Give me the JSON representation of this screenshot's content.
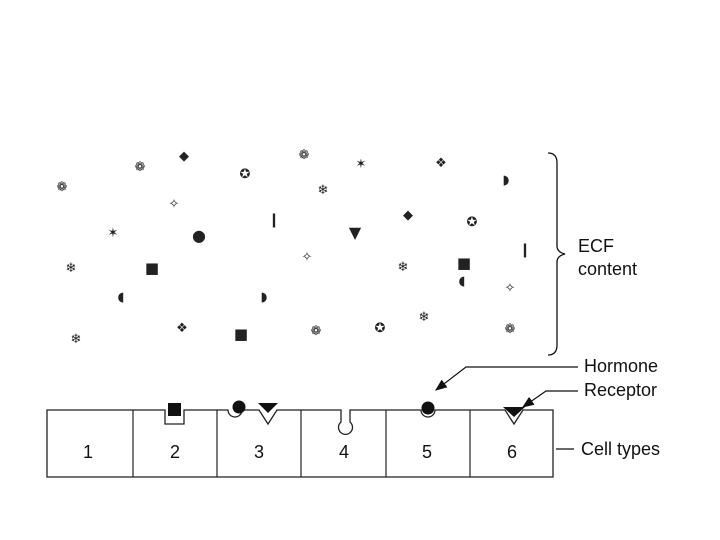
{
  "labels": {
    "ecf_line1": "ECF",
    "ecf_line2": "content",
    "hormone": "Hormone",
    "receptor": "Receptor",
    "cell_types": "Cell types"
  },
  "cells": [
    "1",
    "2",
    "3",
    "4",
    "5",
    "6"
  ],
  "ecf_molecules": [
    {
      "name": "gear-molecule",
      "glyph": "❁"
    },
    {
      "name": "gear-molecule",
      "glyph": "❁"
    },
    {
      "name": "diamond-molecule",
      "glyph": "◆"
    },
    {
      "name": "star-circle-molecule",
      "glyph": "✪"
    },
    {
      "name": "gear-molecule",
      "glyph": "❁"
    },
    {
      "name": "asterisk-molecule",
      "glyph": "✶"
    },
    {
      "name": "cross-diamond-molecule",
      "glyph": "❖"
    },
    {
      "name": "half-circle-molecule",
      "glyph": "◗"
    },
    {
      "name": "snowflake-molecule",
      "glyph": "❄"
    },
    {
      "name": "sparkle-molecule",
      "glyph": "✧"
    },
    {
      "name": "asterisk-molecule",
      "glyph": "✶"
    },
    {
      "name": "circle-molecule",
      "glyph": "●"
    },
    {
      "name": "bar-molecule",
      "glyph": "❙"
    },
    {
      "name": "triangle-molecule",
      "glyph": "▼"
    },
    {
      "name": "diamond-molecule",
      "glyph": "◆"
    },
    {
      "name": "star-circle-molecule",
      "glyph": "✪"
    },
    {
      "name": "snowflake-molecule",
      "glyph": "❄"
    },
    {
      "name": "square-molecule",
      "glyph": "■"
    },
    {
      "name": "sparkle-molecule",
      "glyph": "✧"
    },
    {
      "name": "snowflake-molecule",
      "glyph": "❄"
    },
    {
      "name": "square-molecule",
      "glyph": "■"
    },
    {
      "name": "bar-molecule",
      "glyph": "❙"
    },
    {
      "name": "crescent-molecule",
      "glyph": "◖"
    },
    {
      "name": "half-circle-molecule",
      "glyph": "◗"
    },
    {
      "name": "crescent-molecule",
      "glyph": "◖"
    },
    {
      "name": "sparkle-molecule",
      "glyph": "✧"
    },
    {
      "name": "snowflake-molecule",
      "glyph": "❄"
    },
    {
      "name": "cross-diamond-molecule",
      "glyph": "❖"
    },
    {
      "name": "square-molecule",
      "glyph": "■"
    },
    {
      "name": "gear-molecule",
      "glyph": "❁"
    },
    {
      "name": "star-circle-molecule",
      "glyph": "✪"
    },
    {
      "name": "snowflake-molecule",
      "glyph": "❄"
    },
    {
      "name": "gear-molecule",
      "glyph": "❁"
    }
  ]
}
